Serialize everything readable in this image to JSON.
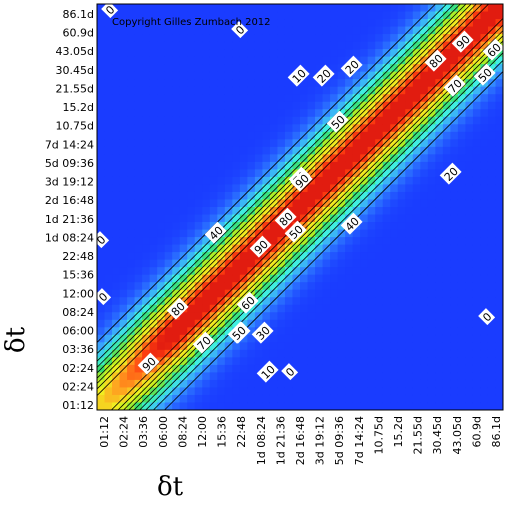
{
  "chart_data": {
    "type": "heatmap",
    "title": "",
    "xlabel": "δt",
    "ylabel": "δt",
    "copyright": "Copyright Gilles Zumbach 2012",
    "ticks": [
      "01:12",
      "02:24",
      "03:36",
      "06:00",
      "08:24",
      "12:00",
      "15:36",
      "22:48",
      "1d 08:24",
      "1d 21:36",
      "2d 16:48",
      "3d 19:12",
      "5d 09:36",
      "7d 14:24",
      "10.75d",
      "15.2d",
      "21.55d",
      "30.45d",
      "43.05d",
      "60.9d",
      "86.1d"
    ],
    "y_ticks": [
      "01:12",
      "02:24",
      "02:24",
      "03:36",
      "06:00",
      "08:24",
      "12:00",
      "15:36",
      "22:48",
      "1d 08:24",
      "1d 21:36",
      "2d 16:48",
      "3d 19:12",
      "5d 09:36",
      "7d 14:24",
      "10.75d",
      "15.2d",
      "21.55d",
      "30.45d",
      "43.05d",
      "60.9d",
      "86.1d"
    ],
    "colorscale": [
      "#1a3cff",
      "#3aa0ff",
      "#3ff0e0",
      "#38e070",
      "#b8f020",
      "#f0f020",
      "#ffa020",
      "#ff4010",
      "#d81010"
    ],
    "contour_levels": [
      0,
      10,
      20,
      30,
      40,
      50,
      60,
      70,
      80,
      90
    ],
    "contour_labels": [
      {
        "text": "0"
      },
      {
        "text": "0"
      },
      {
        "text": "0"
      },
      {
        "text": "0"
      },
      {
        "text": "0"
      },
      {
        "text": "0"
      },
      {
        "text": "10"
      },
      {
        "text": "10"
      },
      {
        "text": "20"
      },
      {
        "text": "20"
      },
      {
        "text": "20"
      },
      {
        "text": "30"
      },
      {
        "text": "30"
      },
      {
        "text": "40"
      },
      {
        "text": "40"
      },
      {
        "text": "50"
      },
      {
        "text": "50"
      },
      {
        "text": "50"
      },
      {
        "text": "50"
      },
      {
        "text": "60"
      },
      {
        "text": "60"
      },
      {
        "text": "70"
      },
      {
        "text": "70"
      },
      {
        "text": "70"
      },
      {
        "text": "80"
      },
      {
        "text": "80"
      },
      {
        "text": "80"
      },
      {
        "text": "90"
      },
      {
        "text": "90"
      },
      {
        "text": "90"
      },
      {
        "text": "90"
      }
    ]
  }
}
